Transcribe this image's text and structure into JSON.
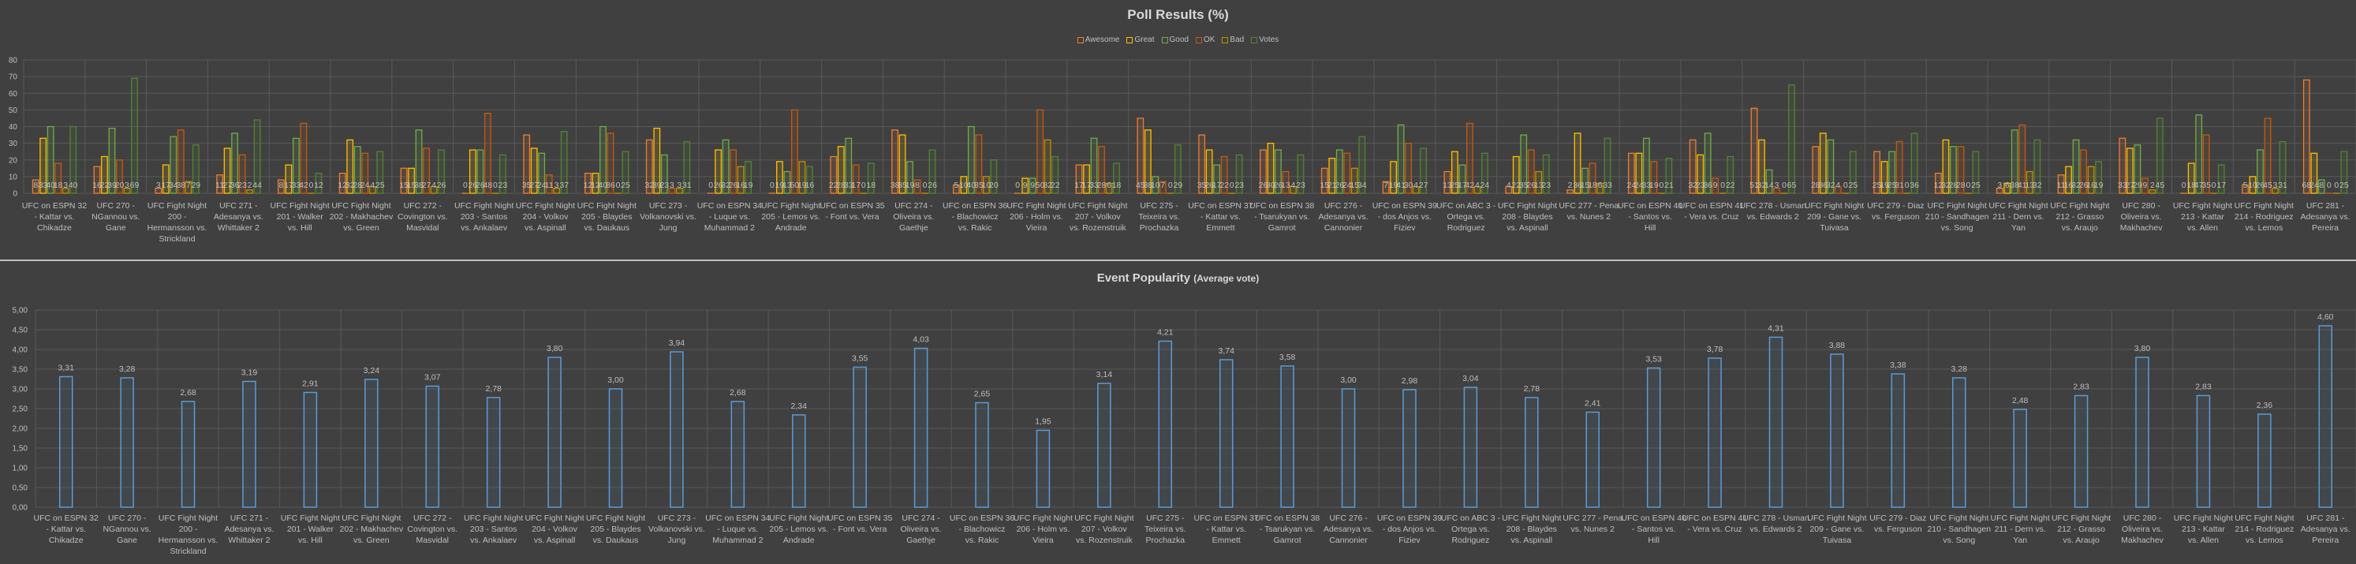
{
  "top_chart_title": "Poll Results (%)",
  "bottom_chart_title": "Event Popularity",
  "bottom_chart_subtitle": "(Average vote)",
  "colors": {
    "Awesome": "#ed7d31",
    "Great": "#ffc000",
    "Good": "#70ad47",
    "OK": "#c55a11",
    "Bad": "#bf9000",
    "Votes": "#548235",
    "avg": "#5b9bd5",
    "background": "#404040",
    "grid": "#595959"
  },
  "chart_data": [
    {
      "type": "bar",
      "title": "Poll Results (%)",
      "xlabel": "",
      "ylabel": "",
      "ylim": [
        0,
        80
      ],
      "yticks": [
        "0",
        "10",
        "20",
        "30",
        "40",
        "50",
        "60",
        "70",
        "80"
      ],
      "grid": true,
      "legend_position": "top-center",
      "categories": [
        "UFC on ESPN 32 - Kattar vs. Chikadze",
        "UFC 270 - NGannou vs. Gane",
        "UFC Fight Night 200 - Hermansson vs. Strickland",
        "UFC 271 - Adesanya vs. Whittaker 2",
        "UFC Fight Night 201 - Walker vs. Hill",
        "UFC Fight Night 202 - Makhachev vs. Green",
        "UFC 272 - Covington vs. Masvidal",
        "UFC Fight Night 203 - Santos vs. Ankalaev",
        "UFC Fight Night 204 - Volkov vs. Aspinall",
        "UFC Fight Night 205 - Blaydes vs. Daukaus",
        "UFC 273 - Volkanovski vs. Jung",
        "UFC on ESPN 34 - Luque vs. Muhammad 2",
        "UFC Fight Night 205 - Lemos vs. Andrade",
        "UFC on ESPN 35 - Font vs. Vera",
        "UFC 274 - Oliveira vs. Gaethje",
        "UFC on ESPN 36 - Blachowicz vs. Rakic",
        "UFC Fight Night 206 - Holm vs. Vieira",
        "UFC Fight Night 207 - Volkov vs. Rozenstruik",
        "UFC 275 - Teixeira vs. Prochazka",
        "UFC on ESPN 37 - Kattar vs. Emmett",
        "UFC on ESPN 38 - Tsarukyan vs. Gamrot",
        "UFC 276 - Adesanya vs. Cannonier",
        "UFC on ESPN 39 - dos Anjos vs. Fiziev",
        "UFC on ABC 3 - Ortega vs. Rodriguez",
        "UFC Fight Night 208 - Blaydes vs. Aspinall",
        "UFC 277 - Pena vs. Nunes 2",
        "UFC on ESPN 40 - Santos vs. Hill",
        "UFC on ESPN 41 - Vera vs. Cruz",
        "UFC 278 - Usman vs. Edwards 2",
        "UFC Fight Night 209 - Gane vs. Tuivasa",
        "UFC 279 - Diaz vs. Ferguson",
        "UFC Fight Night 210 - Sandhagen vs. Song",
        "UFC Fight Night 211 - Dern vs. Yan",
        "UFC Fight Night 212 - Grasso vs. Araujo",
        "UFC 280 - Oliveira vs. Makhachev",
        "UFC Fight Night 213 - Kattar vs. Allen",
        "UFC Fight Night 214 - Rodriguez vs. Lemos",
        "UFC 281 - Adesanya vs. Pereira"
      ],
      "series": [
        {
          "name": "Awesome",
          "values": [
            8,
            16,
            3,
            11,
            8,
            12,
            15,
            0,
            35,
            12,
            32,
            0,
            0,
            22,
            38,
            5,
            0,
            17,
            45,
            35,
            26,
            15,
            7,
            13,
            4,
            2,
            24,
            32,
            51,
            28,
            25,
            12,
            3,
            11,
            33,
            0,
            5,
            68
          ]
        },
        {
          "name": "Great",
          "values": [
            33,
            22,
            17,
            27,
            17,
            32,
            15,
            26,
            27,
            12,
            39,
            26,
            19,
            28,
            35,
            10,
            9,
            17,
            38,
            26,
            30,
            21,
            19,
            25,
            22,
            36,
            24,
            23,
            32,
            36,
            19,
            32,
            6,
            16,
            27,
            18,
            10,
            24
          ]
        },
        {
          "name": "Good",
          "values": [
            40,
            39,
            34,
            36,
            33,
            28,
            38,
            26,
            24,
            40,
            23,
            32,
            13,
            33,
            19,
            40,
            9,
            33,
            10,
            17,
            26,
            26,
            41,
            17,
            35,
            15,
            33,
            36,
            14,
            32,
            25,
            28,
            38,
            32,
            29,
            47,
            26,
            8
          ]
        },
        {
          "name": "OK",
          "values": [
            18,
            20,
            38,
            23,
            42,
            24,
            27,
            48,
            11,
            36,
            3,
            26,
            50,
            17,
            8,
            35,
            50,
            28,
            7,
            22,
            13,
            24,
            30,
            42,
            26,
            18,
            19,
            9,
            3,
            4,
            31,
            28,
            41,
            26,
            9,
            35,
            45,
            0
          ]
        },
        {
          "name": "Bad",
          "values": [
            3,
            3,
            7,
            2,
            0,
            4,
            4,
            0,
            3,
            0,
            3,
            16,
            19,
            0,
            0,
            10,
            32,
            6,
            0,
            0,
            4,
            15,
            4,
            4,
            13,
            6,
            0,
            0,
            0,
            0,
            0,
            0,
            13,
            16,
            2,
            0,
            3,
            0
          ]
        },
        {
          "name": "Votes",
          "values": [
            40,
            69,
            29,
            44,
            12,
            25,
            26,
            23,
            37,
            25,
            31,
            19,
            16,
            18,
            26,
            20,
            22,
            18,
            29,
            23,
            23,
            34,
            27,
            24,
            23,
            33,
            21,
            22,
            65,
            25,
            36,
            25,
            32,
            19,
            45,
            17,
            31,
            25
          ]
        }
      ]
    },
    {
      "type": "bar",
      "title": "Event Popularity (Average vote)",
      "xlabel": "",
      "ylabel": "",
      "ylim": [
        0,
        5
      ],
      "yticks": [
        "0,00",
        "0,50",
        "1,00",
        "1,50",
        "2,00",
        "2,50",
        "3,00",
        "3,50",
        "4,00",
        "4,50",
        "5,00"
      ],
      "grid": true,
      "series": [
        {
          "name": "Average vote",
          "values": [
            3.31,
            3.28,
            2.68,
            3.19,
            2.91,
            3.24,
            3.07,
            2.78,
            3.8,
            3.0,
            3.94,
            2.68,
            2.34,
            3.55,
            4.03,
            2.65,
            1.95,
            3.14,
            4.21,
            3.74,
            3.58,
            3.0,
            2.98,
            3.04,
            2.78,
            2.41,
            3.53,
            3.78,
            4.31,
            3.88,
            3.38,
            3.28,
            2.48,
            2.83,
            3.8,
            2.83,
            2.36,
            4.6
          ],
          "labels": [
            "3,31",
            "3,28",
            "2,68",
            "3,19",
            "2,91",
            "3,24",
            "3,07",
            "2,78",
            "3,80",
            "3,00",
            "3,94",
            "2,68",
            "2,34",
            "3,55",
            "4,03",
            "2,65",
            "1,95",
            "3,14",
            "4,21",
            "3,74",
            "3,58",
            "3,00",
            "2,98",
            "3,04",
            "2,78",
            "2,41",
            "3,53",
            "3,78",
            "4,31",
            "3,88",
            "3,38",
            "3,28",
            "2,48",
            "2,83",
            "3,80",
            "2,83",
            "2,36",
            "4,60"
          ]
        }
      ]
    }
  ]
}
